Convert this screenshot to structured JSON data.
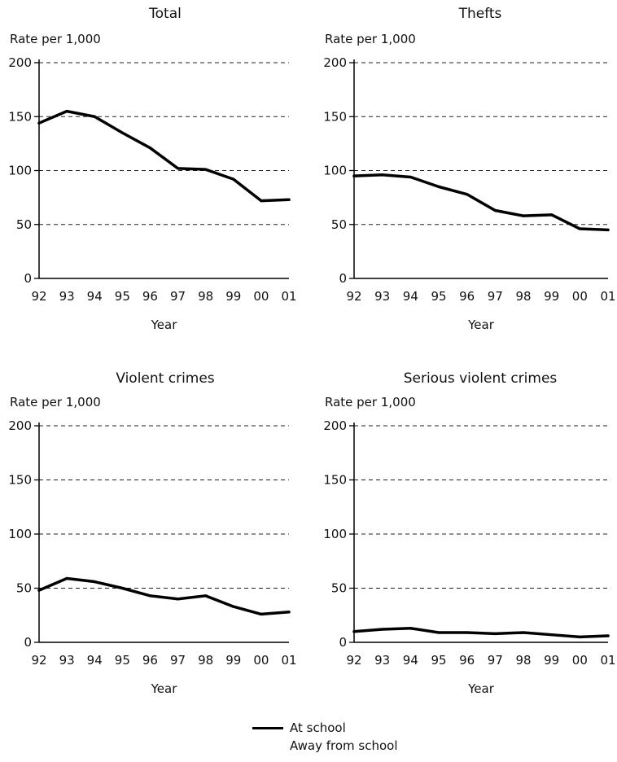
{
  "chart_data": [
    {
      "type": "line",
      "title": "Total",
      "ylabel": "Rate per 1,000",
      "xlabel": "Year",
      "categories": [
        "92",
        "93",
        "94",
        "95",
        "96",
        "97",
        "98",
        "99",
        "00",
        "01"
      ],
      "ylim": [
        0,
        200
      ],
      "yticks": [
        0,
        50,
        100,
        150,
        200
      ],
      "grid": "dashed horizontal",
      "series": [
        {
          "name": "At school",
          "values": [
            144,
            155,
            150,
            135,
            121,
            102,
            101,
            92,
            72,
            73
          ]
        }
      ]
    },
    {
      "type": "line",
      "title": "Thefts",
      "ylabel": "Rate per 1,000",
      "xlabel": "Year",
      "categories": [
        "92",
        "93",
        "94",
        "95",
        "96",
        "97",
        "98",
        "99",
        "00",
        "01"
      ],
      "ylim": [
        0,
        200
      ],
      "yticks": [
        0,
        50,
        100,
        150,
        200
      ],
      "grid": "dashed horizontal",
      "series": [
        {
          "name": "At school",
          "values": [
            95,
            96,
            94,
            85,
            78,
            63,
            58,
            59,
            46,
            45
          ]
        }
      ]
    },
    {
      "type": "line",
      "title": "Violent crimes",
      "ylabel": "Rate per 1,000",
      "xlabel": "Year",
      "categories": [
        "92",
        "93",
        "94",
        "95",
        "96",
        "97",
        "98",
        "99",
        "00",
        "01"
      ],
      "ylim": [
        0,
        200
      ],
      "yticks": [
        0,
        50,
        100,
        150,
        200
      ],
      "grid": "dashed horizontal",
      "series": [
        {
          "name": "At school",
          "values": [
            48,
            59,
            56,
            50,
            43,
            40,
            43,
            33,
            26,
            28
          ]
        }
      ]
    },
    {
      "type": "line",
      "title": "Serious violent crimes",
      "ylabel": "Rate per 1,000",
      "xlabel": "Year",
      "categories": [
        "92",
        "93",
        "94",
        "95",
        "96",
        "97",
        "98",
        "99",
        "00",
        "01"
      ],
      "ylim": [
        0,
        200
      ],
      "yticks": [
        0,
        50,
        100,
        150,
        200
      ],
      "grid": "dashed horizontal",
      "series": [
        {
          "name": "At school",
          "values": [
            10,
            12,
            13,
            9,
            9,
            8,
            9,
            7,
            5,
            6
          ]
        }
      ]
    }
  ],
  "legend": {
    "items": [
      {
        "label": "At school",
        "color": "#000000"
      },
      {
        "label": "Away from school",
        "color": "#ffffff"
      }
    ]
  }
}
